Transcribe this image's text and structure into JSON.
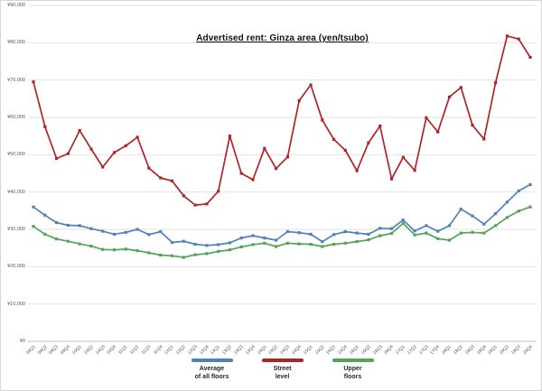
{
  "chart_data": {
    "type": "line",
    "title": "Advertised rent: Ginza area (yen/tsubo)",
    "grid": true,
    "legend_position": "bottom",
    "categories": [
      "09Q1",
      "09Q2",
      "09Q3",
      "09Q4",
      "10Q1",
      "10Q2",
      "10Q3",
      "10Q4",
      "11Q1",
      "11Q2",
      "11Q3",
      "11Q4",
      "12Q1",
      "12Q2",
      "12Q3",
      "12Q4",
      "13Q1",
      "13Q2",
      "13Q3",
      "13Q4",
      "14Q1",
      "14Q2",
      "14Q3",
      "14Q4",
      "15Q1",
      "15Q2",
      "15Q3",
      "15Q4",
      "16Q1",
      "16Q2",
      "16Q3",
      "16Q4",
      "17Q1",
      "17Q2",
      "17Q3",
      "17Q4",
      "18Q1",
      "18Q2",
      "18Q3",
      "18Q4",
      "19Q1",
      "19Q2",
      "19Q3",
      "19Q4"
    ],
    "y_axis": {
      "min": 0,
      "max": 90000,
      "step": 10000,
      "tick_labels": [
        "¥0",
        "¥10,000",
        "¥20,000",
        "¥30,000",
        "¥40,000",
        "¥50,000",
        "¥60,000",
        "¥70,000",
        "¥80,000",
        "¥90,000"
      ]
    },
    "series": [
      {
        "name": "Average of all floors",
        "legend_lines": [
          "Average",
          "of all floors"
        ],
        "color": "#4F81BD",
        "values": [
          36000,
          33800,
          31800,
          31100,
          31000,
          30200,
          29500,
          28700,
          29200,
          30000,
          28600,
          29400,
          26500,
          26800,
          26000,
          25700,
          25900,
          26400,
          27700,
          28300,
          27700,
          27100,
          29400,
          29100,
          28700,
          26700,
          28600,
          29400,
          29000,
          28700,
          30300,
          30200,
          32500,
          29600,
          31000,
          29500,
          31000,
          35400,
          33600,
          31400,
          34200,
          37300,
          40300,
          42000
        ]
      },
      {
        "name": "Street level",
        "legend_lines": [
          "Street",
          "level"
        ],
        "color": "#B02428",
        "values": [
          69500,
          57500,
          49000,
          50300,
          56500,
          51500,
          46700,
          50600,
          52400,
          54700,
          46400,
          43800,
          43000,
          39000,
          36500,
          36800,
          40200,
          55000,
          45000,
          43300,
          51700,
          46300,
          49400,
          64500,
          68700,
          59300,
          54100,
          51200,
          45700,
          53200,
          57700,
          43500,
          49300,
          45800,
          59900,
          56100,
          65500,
          68000,
          57900,
          54200,
          69300,
          81800,
          81000,
          76100
        ]
      },
      {
        "name": "Upper floors",
        "legend_lines": [
          "Upper",
          "floors"
        ],
        "color": "#55A455",
        "values": [
          30800,
          28700,
          27400,
          26800,
          26100,
          25500,
          24600,
          24500,
          24700,
          24300,
          23700,
          23100,
          22900,
          22500,
          23200,
          23500,
          24100,
          24500,
          25300,
          25900,
          26300,
          25400,
          26300,
          26100,
          26000,
          25400,
          26000,
          26300,
          26700,
          27200,
          28300,
          28900,
          31600,
          28500,
          29000,
          27500,
          27100,
          29000,
          29200,
          29000,
          31000,
          33200,
          34900,
          36000
        ]
      }
    ]
  }
}
